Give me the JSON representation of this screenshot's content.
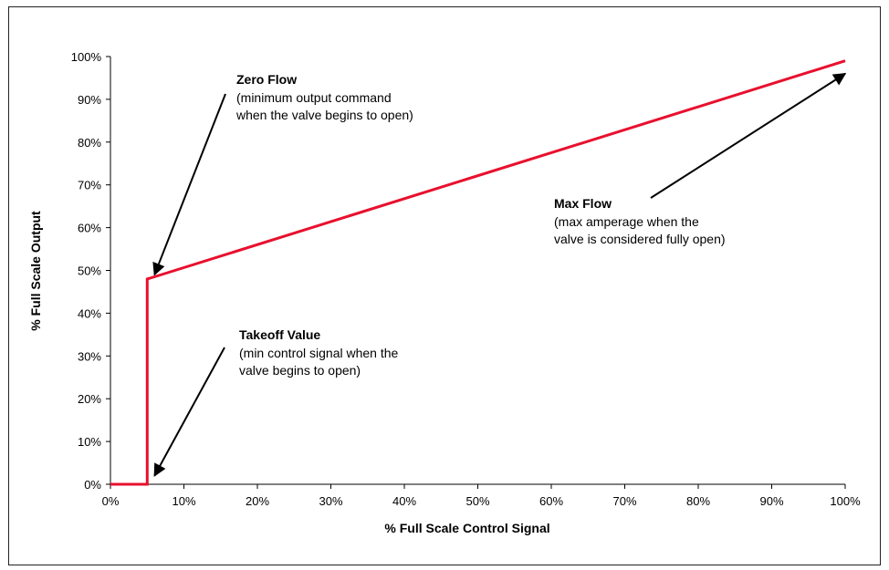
{
  "chart_data": {
    "type": "line",
    "xlabel": "% Full Scale Control Signal",
    "ylabel": "% Full Scale Output",
    "xlim": [
      0,
      100
    ],
    "ylim": [
      0,
      100
    ],
    "x_ticks": [
      "0%",
      "10%",
      "20%",
      "30%",
      "40%",
      "50%",
      "60%",
      "70%",
      "80%",
      "90%",
      "100%"
    ],
    "y_ticks": [
      "0%",
      "10%",
      "20%",
      "30%",
      "40%",
      "50%",
      "60%",
      "70%",
      "80%",
      "90%",
      "100%"
    ],
    "grid": false,
    "line_color": "#e8102e",
    "series": [
      {
        "x": [
          0,
          5,
          5,
          6,
          100
        ],
        "y": [
          0,
          0,
          48,
          48.5,
          99
        ]
      }
    ],
    "annotations": [
      {
        "title": "Zero Flow",
        "lines": [
          "(minimum output command",
          "when the valve begins to open)"
        ],
        "points_to": [
          6,
          49
        ]
      },
      {
        "title": "Takeoff Value",
        "lines": [
          "(min control signal when the",
          "valve begins to open)"
        ],
        "points_to": [
          6,
          2
        ]
      },
      {
        "title": "Max Flow",
        "lines": [
          "(max amperage  when the",
          "valve is considered fully open)"
        ],
        "points_to": [
          100,
          96
        ]
      }
    ]
  }
}
